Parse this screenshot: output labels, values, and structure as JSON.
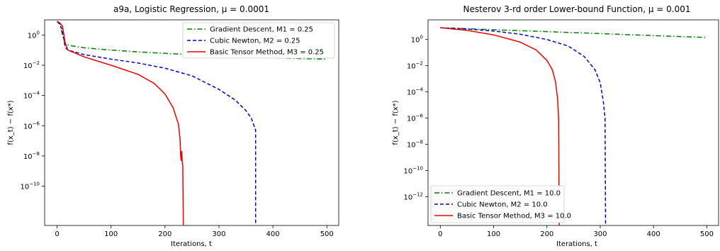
{
  "chart_data": [
    {
      "type": "line",
      "title": "a9a, Logistic Regression, μ = 0.0001",
      "xlabel": "Iterations, t",
      "ylabel": "f(x_t) − f(x*)",
      "yscale": "log",
      "xlim": [
        -23,
        522
      ],
      "ylim_log10": [
        -12.6,
        1.0
      ],
      "xticks": [
        0,
        100,
        200,
        300,
        400,
        500
      ],
      "yticks": [
        {
          "base": "10",
          "exp": "0",
          "log": 0
        },
        {
          "base": "10",
          "exp": "−2",
          "log": -2
        },
        {
          "base": "10",
          "exp": "−4",
          "log": -4
        },
        {
          "base": "10",
          "exp": "−6",
          "log": -6
        },
        {
          "base": "10",
          "exp": "−8",
          "log": -8
        },
        {
          "base": "10",
          "exp": "−10",
          "log": -10
        }
      ],
      "legend_position": "top-right",
      "grid": false,
      "series": [
        {
          "name": "Gradient Descent, M1 = 0.25",
          "color": "#008000",
          "dash": "7,3,1.5,3",
          "points": [
            [
              0,
              0.9
            ],
            [
              5,
              0.8
            ],
            [
              10,
              0.0
            ],
            [
              15,
              -0.6
            ],
            [
              25,
              -0.7
            ],
            [
              50,
              -0.85
            ],
            [
              100,
              -1.0
            ],
            [
              150,
              -1.12
            ],
            [
              200,
              -1.22
            ],
            [
              250,
              -1.3
            ],
            [
              300,
              -1.38
            ],
            [
              350,
              -1.45
            ],
            [
              400,
              -1.5
            ],
            [
              450,
              -1.56
            ],
            [
              500,
              -1.6
            ]
          ]
        },
        {
          "name": "Cubic Newton, M2 = 0.25",
          "color": "#0000cc",
          "dash": "5,3",
          "points": [
            [
              0,
              0.9
            ],
            [
              5,
              0.7
            ],
            [
              10,
              0.3
            ],
            [
              15,
              -0.8
            ],
            [
              20,
              -1.0
            ],
            [
              50,
              -1.3
            ],
            [
              100,
              -1.6
            ],
            [
              150,
              -1.85
            ],
            [
              200,
              -2.2
            ],
            [
              250,
              -2.7
            ],
            [
              300,
              -3.6
            ],
            [
              330,
              -4.3
            ],
            [
              350,
              -5.0
            ],
            [
              360,
              -5.5
            ],
            [
              368,
              -6.3
            ],
            [
              368,
              -12.6
            ]
          ]
        },
        {
          "name": "Basic Tensor Method, M3 = 0.25",
          "color": "#ee0000",
          "dash": "",
          "points": [
            [
              0,
              0.9
            ],
            [
              5,
              0.8
            ],
            [
              10,
              0.6
            ],
            [
              15,
              -0.5
            ],
            [
              20,
              -1.0
            ],
            [
              50,
              -1.45
            ],
            [
              100,
              -2.0
            ],
            [
              150,
              -2.6
            ],
            [
              180,
              -3.2
            ],
            [
              200,
              -3.9
            ],
            [
              215,
              -4.8
            ],
            [
              225,
              -5.9
            ],
            [
              228,
              -6.9
            ],
            [
              229,
              -8.0
            ],
            [
              230,
              -8.3
            ],
            [
              231,
              -7.7
            ],
            [
              232,
              -8.4
            ],
            [
              233,
              -8.6
            ],
            [
              234,
              -12.6
            ]
          ]
        }
      ]
    },
    {
      "type": "line",
      "title": "Nesterov 3-rd order Lower-bound Function, μ = 0.001",
      "xlabel": "Iterations, t",
      "ylabel": "f(x_t) − f(x*)",
      "yscale": "log",
      "xlim": [
        -23,
        522
      ],
      "ylim_log10": [
        -14.2,
        1.5
      ],
      "xticks": [
        0,
        100,
        200,
        300,
        400,
        500
      ],
      "yticks": [
        {
          "base": "10",
          "exp": "0",
          "log": 0
        },
        {
          "base": "10",
          "exp": "−2",
          "log": -2
        },
        {
          "base": "10",
          "exp": "−4",
          "log": -4
        },
        {
          "base": "10",
          "exp": "−6",
          "log": -6
        },
        {
          "base": "10",
          "exp": "−8",
          "log": -8
        },
        {
          "base": "10",
          "exp": "−10",
          "log": -10
        },
        {
          "base": "10",
          "exp": "−12",
          "log": -12
        }
      ],
      "legend_position": "bottom-left",
      "grid": false,
      "series": [
        {
          "name": "Gradient Descent, M1 = 10.0",
          "color": "#008000",
          "dash": "7,3,1.5,3",
          "points": [
            [
              0,
              0.9
            ],
            [
              100,
              0.75
            ],
            [
              200,
              0.6
            ],
            [
              300,
              0.45
            ],
            [
              400,
              0.3
            ],
            [
              500,
              0.15
            ]
          ]
        },
        {
          "name": "Cubic Newton, M2 = 10.0",
          "color": "#0000cc",
          "dash": "5,3",
          "points": [
            [
              0,
              0.9
            ],
            [
              50,
              0.8
            ],
            [
              100,
              0.65
            ],
            [
              150,
              0.4
            ],
            [
              200,
              0.0
            ],
            [
              240,
              -0.5
            ],
            [
              270,
              -1.3
            ],
            [
              290,
              -2.3
            ],
            [
              300,
              -3.3
            ],
            [
              306,
              -4.8
            ],
            [
              309,
              -6.0
            ],
            [
              310,
              -14.2
            ]
          ]
        },
        {
          "name": "Basic Tensor Method, M3 = 10.0",
          "color": "#ee0000",
          "dash": "",
          "points": [
            [
              0,
              0.9
            ],
            [
              50,
              0.7
            ],
            [
              100,
              0.35
            ],
            [
              150,
              -0.2
            ],
            [
              180,
              -0.8
            ],
            [
              200,
              -1.6
            ],
            [
              210,
              -2.3
            ],
            [
              216,
              -3.2
            ],
            [
              220,
              -4.5
            ],
            [
              222,
              -6.0
            ],
            [
              223,
              -14.2
            ]
          ]
        }
      ]
    }
  ]
}
